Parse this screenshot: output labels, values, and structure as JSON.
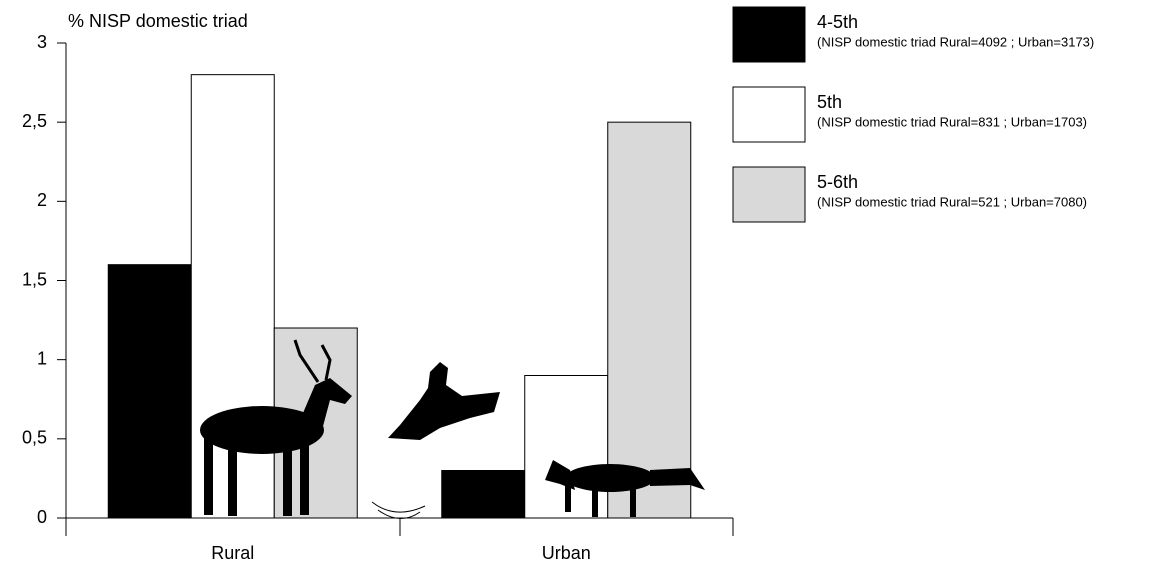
{
  "chart_data": {
    "type": "bar",
    "y_label": "% NISP domestic triad",
    "categories": [
      "Rural",
      "Urban"
    ],
    "series": [
      {
        "name": "4-5th",
        "description": "(NISP domestic triad Rural=4092 ; Urban=3173)",
        "color": "#000000",
        "values": [
          1.6,
          0.3
        ]
      },
      {
        "name": "5th",
        "description": "(NISP domestic triad Rural=831 ; Urban=1703)",
        "color": "#ffffff",
        "values": [
          2.8,
          0.9
        ]
      },
      {
        "name": "5-6th",
        "description": "(NISP domestic triad Rural=521 ; Urban=7080)",
        "color": "#d9d9d9",
        "values": [
          1.2,
          2.5
        ]
      }
    ],
    "ylim": [
      0,
      3
    ],
    "yticks": [
      0,
      {
        "value": 0.5,
        "label": "0,5"
      },
      1,
      {
        "value": 1.5,
        "label": "1,5"
      },
      2,
      {
        "value": 2.5,
        "label": "2,5"
      },
      3
    ],
    "grid": false,
    "legend": "right"
  }
}
